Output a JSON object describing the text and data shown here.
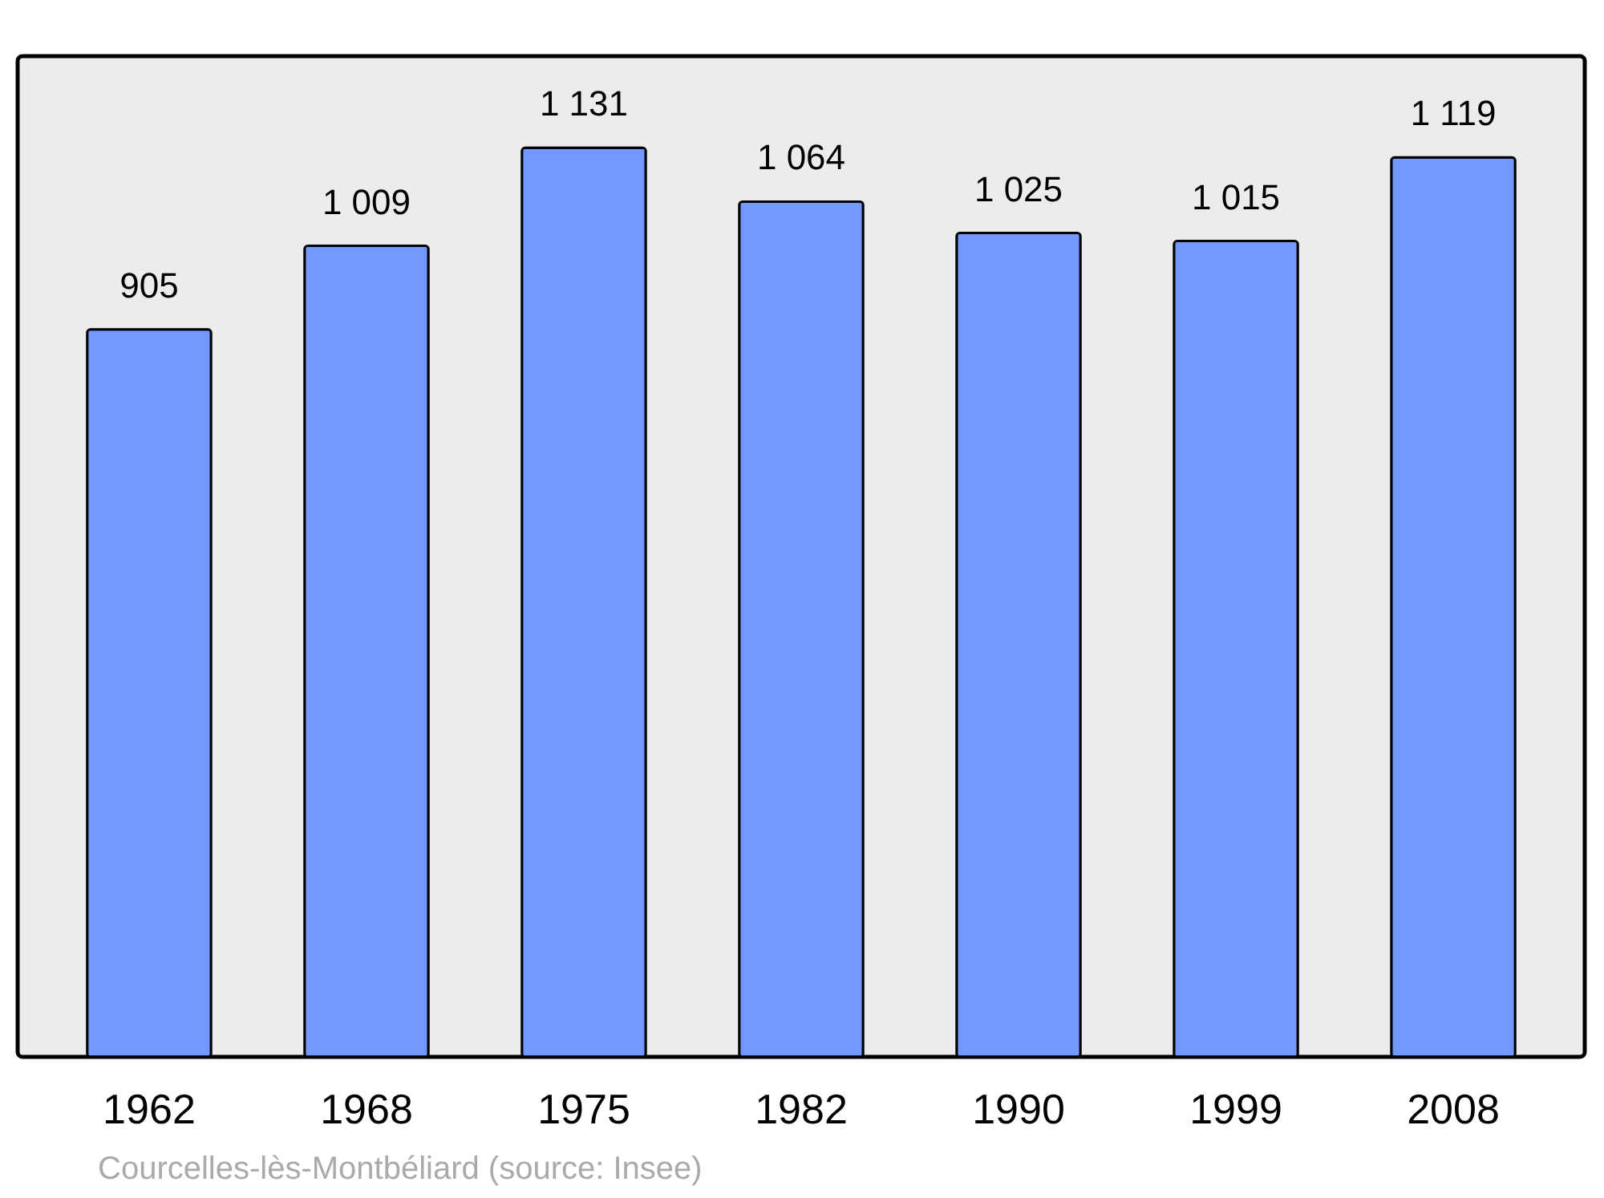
{
  "chart_data": {
    "type": "bar",
    "categories": [
      "1962",
      "1968",
      "1975",
      "1982",
      "1990",
      "1999",
      "2008"
    ],
    "values": [
      905,
      1009,
      1131,
      1064,
      1025,
      1015,
      1119
    ],
    "value_labels": [
      "905",
      "1 009",
      "1 131",
      "1 064",
      "1 025",
      "1 015",
      "1 119"
    ],
    "color": "#7299ff",
    "ylim": [
      0,
      1245
    ],
    "tick_labels": "x",
    "annotations": [
      "Courcelles-lès-Montbéliard    (source: Insee)"
    ]
  }
}
